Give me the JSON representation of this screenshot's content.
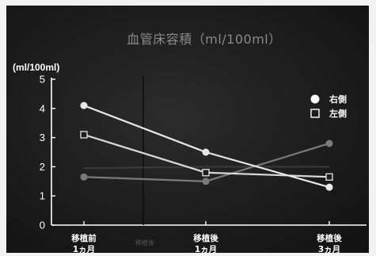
{
  "chart_data": {
    "type": "line",
    "title": "血管床容積（ml/100ml）",
    "ylabel": "(ml/100ml)",
    "xlabel": "",
    "ylim": [
      0,
      5
    ],
    "yticks": [
      "0",
      "1",
      "2",
      "3",
      "4",
      "5"
    ],
    "categories": [
      [
        "移植前",
        "1ヵ月"
      ],
      [
        "移植後",
        "1ヵ月"
      ],
      [
        "移植後",
        "3ヵ月"
      ]
    ],
    "annotation": "移植後",
    "legend_position": "right",
    "grid": false,
    "series": [
      {
        "name": "右側",
        "marker": "circle",
        "color": "#e8e8e8",
        "values": [
          4.1,
          2.5,
          1.3
        ]
      },
      {
        "name": "左側",
        "marker": "square",
        "color": "#d8d8d8",
        "values": [
          3.1,
          1.8,
          1.65
        ]
      },
      {
        "name": "",
        "marker": "circle",
        "color": "#7a7a7a",
        "values": [
          1.65,
          1.5,
          2.8
        ]
      },
      {
        "name": "",
        "marker": "none",
        "color": "#3a3a3a",
        "values": [
          1.95,
          2.0,
          2.0
        ]
      }
    ]
  }
}
